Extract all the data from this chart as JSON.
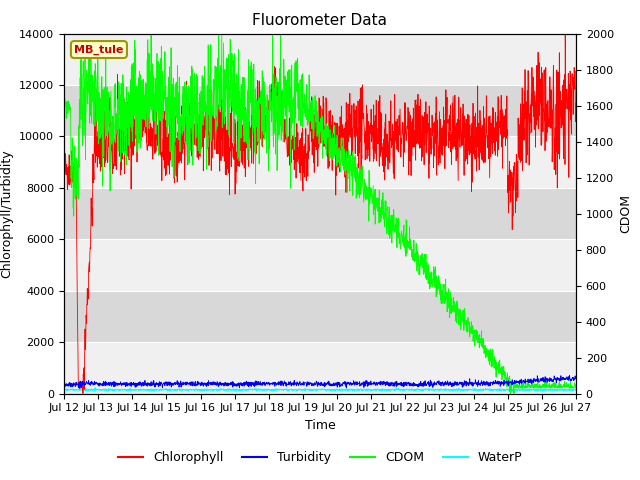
{
  "title": "Fluorometer Data",
  "xlabel": "Time",
  "ylabel_left": "Chlorophyll/Turbidity",
  "ylabel_right": "CDOM",
  "annotation": "MB_tule",
  "ylim_left": [
    0,
    14000
  ],
  "ylim_right": [
    0,
    2000
  ],
  "xtick_labels": [
    "Jul 12",
    "Jul 13",
    "Jul 14",
    "Jul 15",
    "Jul 16",
    "Jul 17",
    "Jul 18",
    "Jul 19",
    "Jul 20",
    "Jul 21",
    "Jul 22",
    "Jul 23",
    "Jul 24",
    "Jul 25",
    "Jul 26",
    "Jul 27"
  ],
  "legend_entries": [
    "Chlorophyll",
    "Turbidity",
    "CDOM",
    "WaterP"
  ],
  "legend_colors": [
    "red",
    "blue",
    "lime",
    "cyan"
  ],
  "title_fontsize": 11,
  "label_fontsize": 9,
  "tick_fontsize": 8,
  "annotation_box_color": "#ffffcc",
  "annotation_border_color": "#999900",
  "annotation_text_color": "#cc0000",
  "band_colors": [
    "#f0f0f0",
    "#d8d8d8"
  ],
  "band_yticks": [
    0,
    2000,
    4000,
    6000,
    8000,
    10000,
    12000,
    14000
  ],
  "yticks_left": [
    0,
    2000,
    4000,
    6000,
    8000,
    10000,
    12000,
    14000
  ],
  "yticks_right": [
    0,
    200,
    400,
    600,
    800,
    1000,
    1200,
    1400,
    1600,
    1800,
    2000
  ],
  "cdom_scale": 7.0
}
